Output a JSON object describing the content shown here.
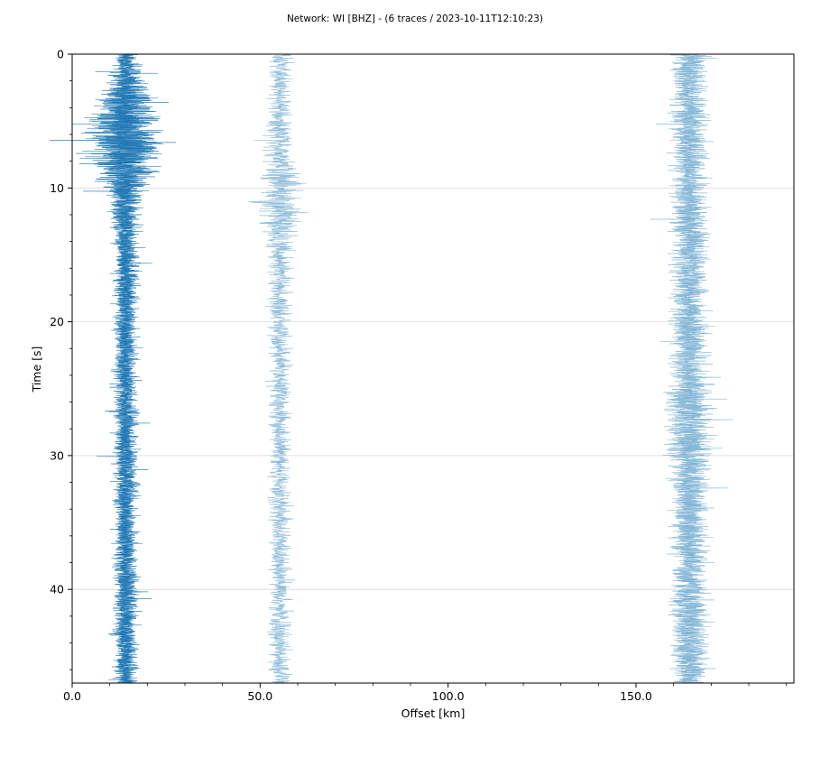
{
  "chart_data": {
    "type": "line",
    "title": "Network: WI [BHZ] - (6 traces / 2023-10-11T12:10:23)",
    "xlabel": "Offset [km]",
    "ylabel": "Time [s]",
    "xlim": [
      0,
      192
    ],
    "ylim": [
      47,
      0
    ],
    "y_inverted": true,
    "grid": "horizontal",
    "x_ticks": [
      "0.0",
      "50.0",
      "100.0",
      "150.0"
    ],
    "y_ticks": [
      "0",
      "10",
      "20",
      "30",
      "40"
    ],
    "series": [
      {
        "offset_km": 14.3,
        "amplitude_km": 4.5,
        "burst_time_s": 6.5,
        "burst_gain": 3.5,
        "color": "#1f77b4"
      },
      {
        "offset_km": 14.5,
        "amplitude_km": 3.5,
        "burst_time_s": 5.8,
        "burst_gain": 4.0,
        "color": "#1f77b4"
      },
      {
        "offset_km": 13.8,
        "amplitude_km": 3.0,
        "burst_time_s": 7.5,
        "burst_gain": 3.0,
        "color": "#1f77b4"
      },
      {
        "offset_km": 55.2,
        "amplitude_km": 3.8,
        "burst_time_s": 10.8,
        "burst_gain": 2.0,
        "color": "#7fb3d5"
      },
      {
        "offset_km": 164.6,
        "amplitude_km": 6.5,
        "burst_time_s": 28.0,
        "burst_gain": 1.3,
        "color": "#7fb3d5"
      },
      {
        "offset_km": 163.8,
        "amplitude_km": 5.5,
        "burst_time_s": 27.2,
        "burst_gain": 1.4,
        "color": "#7fb3d5"
      }
    ]
  }
}
